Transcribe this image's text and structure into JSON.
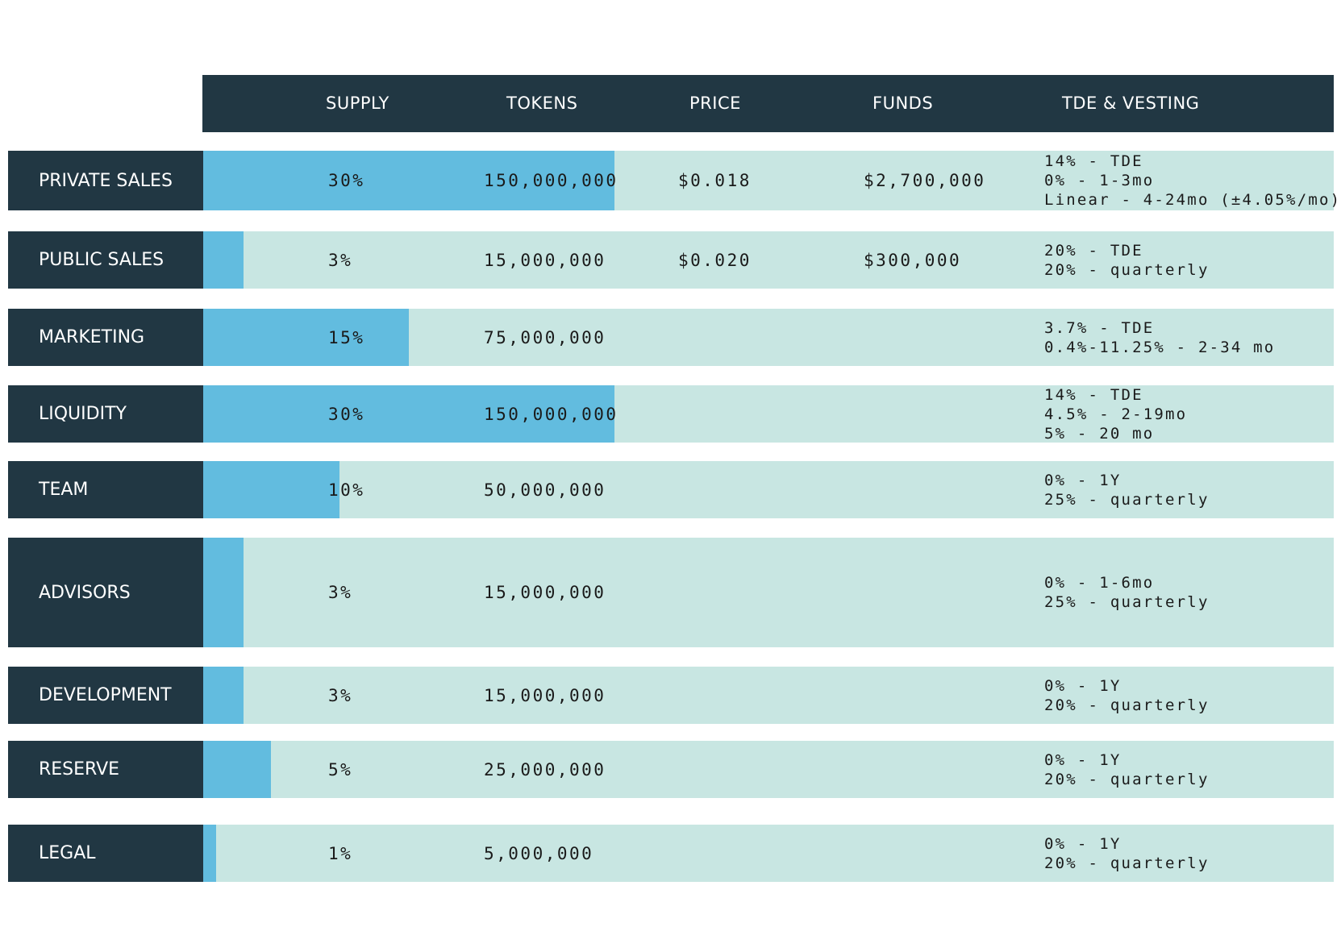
{
  "chart_data": {
    "type": "table",
    "title": "",
    "columns": [
      "SUPPLY",
      "TOKENS",
      "PRICE",
      "FUNDS",
      "TDE & VESTING"
    ],
    "rows": [
      {
        "label": "PRIVATE SALES",
        "supply": "30%",
        "supply_value": 30,
        "tokens": "150,000,000",
        "price": "$0.018",
        "funds": "$2,700,000",
        "vesting": [
          "14% - TDE",
          "0% - 1-3mo",
          "Linear - 4-24mo (±4.05%/mo)"
        ]
      },
      {
        "label": "PUBLIC SALES",
        "supply": "3%",
        "supply_value": 3,
        "tokens": "15,000,000",
        "price": "$0.020",
        "funds": "$300,000",
        "vesting": [
          "20% - TDE",
          "20% - quarterly"
        ]
      },
      {
        "label": "MARKETING",
        "supply": "15%",
        "supply_value": 15,
        "tokens": "75,000,000",
        "price": "",
        "funds": "",
        "vesting": [
          "3.7% - TDE",
          "0.4%-11.25% - 2-34 mo"
        ]
      },
      {
        "label": "LIQUIDITY",
        "supply": "30%",
        "supply_value": 30,
        "tokens": "150,000,000",
        "price": "",
        "funds": "",
        "vesting": [
          "14% - TDE",
          "4.5% - 2-19mo",
          "5% - 20 mo"
        ]
      },
      {
        "label": "TEAM",
        "supply": "10%",
        "supply_value": 10,
        "tokens": "50,000,000",
        "price": "",
        "funds": "",
        "vesting": [
          "0% - 1Y",
          "25% - quarterly"
        ]
      },
      {
        "label": "ADVISORS",
        "supply": "3%",
        "supply_value": 3,
        "tokens": "15,000,000",
        "price": "",
        "funds": "",
        "vesting": [
          "0% - 1-6mo",
          "25% - quarterly"
        ]
      },
      {
        "label": "DEVELOPMENT",
        "supply": "3%",
        "supply_value": 3,
        "tokens": "15,000,000",
        "price": "",
        "funds": "",
        "vesting": [
          "0% - 1Y",
          "20% - quarterly"
        ]
      },
      {
        "label": "RESERVE",
        "supply": "5%",
        "supply_value": 5,
        "tokens": "25,000,000",
        "price": "",
        "funds": "",
        "vesting": [
          "0% - 1Y",
          "20% - quarterly"
        ]
      },
      {
        "label": "LEGAL",
        "supply": "1%",
        "supply_value": 1,
        "tokens": "5,000,000",
        "price": "",
        "funds": "",
        "vesting": [
          "0% - 1Y",
          "20% - quarterly"
        ]
      }
    ],
    "bar_max_percent": 30
  },
  "colors": {
    "header_bg": "#213743",
    "label_bg": "#213743",
    "bar_fill": "#62bcdf",
    "track": "#c8e6e2"
  }
}
